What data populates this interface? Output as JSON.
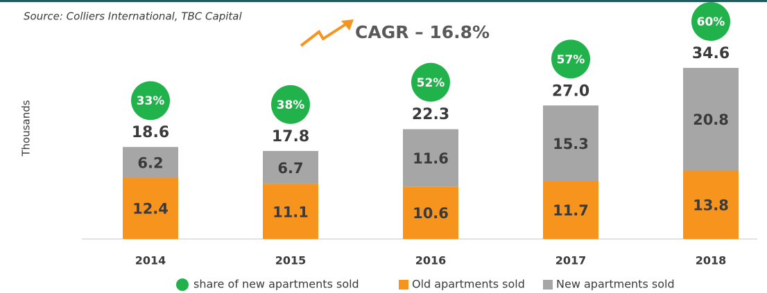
{
  "chart_data": {
    "type": "bar",
    "stacked": true,
    "source": "Source: Colliers International, TBC Capital",
    "annotation": "CAGR – 16.8%",
    "y_label": "Thousands",
    "categories": [
      "2014",
      "2015",
      "2016",
      "2017",
      "2018"
    ],
    "series": [
      {
        "name": "Old apartments sold",
        "color": "#f7941d",
        "values": [
          12.4,
          11.1,
          10.6,
          11.7,
          13.8
        ]
      },
      {
        "name": "New apartments sold",
        "color": "#a6a6a6",
        "values": [
          6.2,
          6.7,
          11.6,
          15.3,
          20.8
        ]
      }
    ],
    "totals": {
      "values": [
        18.6,
        17.8,
        22.3,
        27.0,
        34.6
      ],
      "value_labels": [
        "18.6",
        "17.8",
        "22.3",
        "27.0",
        "34.6"
      ]
    },
    "share": {
      "name": "share of new apartments sold",
      "color": "#22b24c",
      "values": [
        33,
        38,
        52,
        57,
        60
      ],
      "value_labels": [
        "33%",
        "38%",
        "52%",
        "57%",
        "60%"
      ]
    },
    "legend": "bottom"
  }
}
